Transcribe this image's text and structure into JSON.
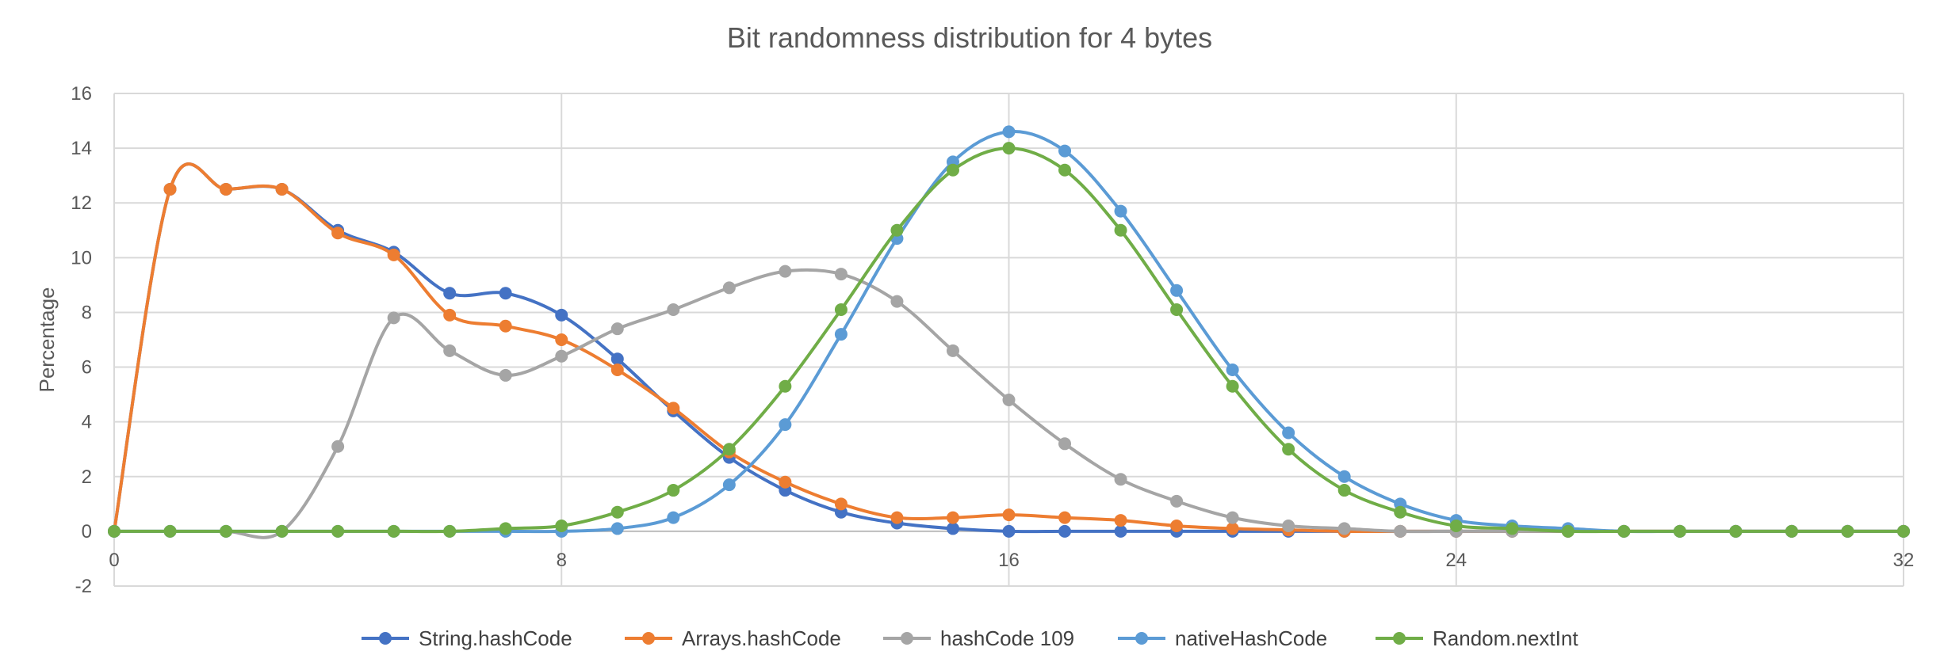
{
  "chart_data": {
    "type": "line",
    "title": "Bit randomness distribution for 4 bytes",
    "xlabel": "",
    "ylabel": "Percentage",
    "xlim": [
      0,
      32
    ],
    "ylim": [
      -2,
      16
    ],
    "x_ticks": [
      0,
      8,
      16,
      24,
      32
    ],
    "y_ticks": [
      -2,
      0,
      2,
      4,
      6,
      8,
      10,
      12,
      14,
      16
    ],
    "grid": true,
    "smooth": true,
    "legend_position": "bottom",
    "x": [
      0,
      1,
      2,
      3,
      4,
      5,
      6,
      7,
      8,
      9,
      10,
      11,
      12,
      13,
      14,
      15,
      16,
      17,
      18,
      19,
      20,
      21,
      22,
      23,
      24,
      25,
      26,
      27,
      28,
      29,
      30,
      31,
      32
    ],
    "series": [
      {
        "name": "String.hashCode",
        "color": "#4472C4",
        "values": [
          0,
          12.5,
          12.5,
          12.5,
          11.0,
          10.2,
          8.7,
          8.7,
          7.9,
          6.3,
          4.4,
          2.7,
          1.5,
          0.7,
          0.3,
          0.1,
          0,
          0,
          0,
          0,
          0,
          0,
          0,
          0,
          0,
          0,
          0,
          0,
          0,
          0,
          0,
          0,
          0
        ]
      },
      {
        "name": "Arrays.hashCode",
        "color": "#ED7D31",
        "values": [
          0,
          12.5,
          12.5,
          12.5,
          10.9,
          10.1,
          7.9,
          7.5,
          7.0,
          5.9,
          4.5,
          2.9,
          1.8,
          1.0,
          0.5,
          0.5,
          0.6,
          0.5,
          0.4,
          0.2,
          0.1,
          0.05,
          0,
          0,
          0,
          0,
          0,
          0,
          0,
          0,
          0,
          0,
          0
        ]
      },
      {
        "name": "hashCode 109",
        "color": "#A5A5A5",
        "values": [
          0,
          0,
          0,
          0,
          3.1,
          7.8,
          6.6,
          5.7,
          6.4,
          7.4,
          8.1,
          8.9,
          9.5,
          9.4,
          8.4,
          6.6,
          4.8,
          3.2,
          1.9,
          1.1,
          0.5,
          0.2,
          0.1,
          0,
          0,
          0,
          0,
          0,
          0,
          0,
          0,
          0,
          0
        ]
      },
      {
        "name": "nativeHashCode",
        "color": "#5B9BD5",
        "values": [
          0,
          0,
          0,
          0,
          0,
          0,
          0,
          0,
          0,
          0.1,
          0.5,
          1.7,
          3.9,
          7.2,
          10.7,
          13.5,
          14.6,
          13.9,
          11.7,
          8.8,
          5.9,
          3.6,
          2.0,
          1.0,
          0.4,
          0.2,
          0.1,
          0,
          0,
          0,
          0,
          0,
          0
        ]
      },
      {
        "name": "Random.nextInt",
        "color": "#70AD47",
        "values": [
          0,
          0,
          0,
          0,
          0,
          0,
          0,
          0.1,
          0.2,
          0.7,
          1.5,
          3.0,
          5.3,
          8.1,
          11.0,
          13.2,
          14.0,
          13.2,
          11.0,
          8.1,
          5.3,
          3.0,
          1.5,
          0.7,
          0.2,
          0.1,
          0,
          0,
          0,
          0,
          0,
          0,
          0
        ]
      }
    ]
  }
}
